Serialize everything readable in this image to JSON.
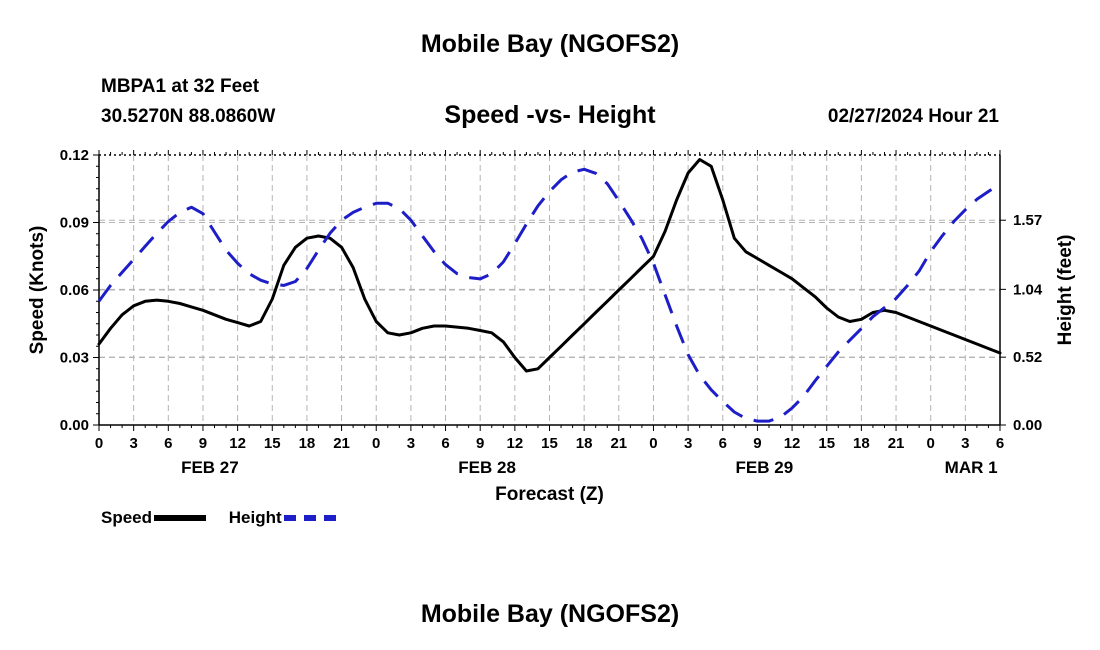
{
  "title": "Mobile Bay (NGOFS2)",
  "footer_title": "Mobile Bay (NGOFS2)",
  "station": "MBPA1 at 32 Feet",
  "coordinates": "30.5270N  88.0860W",
  "subtitle": "Speed -vs- Height",
  "timestamp": "02/27/2024 Hour 21",
  "colors": {
    "speed": "#000000",
    "height": "#1e1ec8",
    "grid": "#b4b4b4"
  },
  "chart_data": {
    "type": "line",
    "title": "Speed -vs- Height",
    "xlabel": "Forecast (Z)",
    "ylabel": "Speed (Knots)",
    "ylabel_right": "Height (feet)",
    "x_unit": "hours from FEB 27 00Z",
    "xlim": [
      0,
      78
    ],
    "ylim": [
      0,
      0.12
    ],
    "ylim_right": [
      0,
      2.07
    ],
    "x_tick_values": [
      0,
      3,
      6,
      9,
      12,
      15,
      18,
      21,
      24,
      27,
      30,
      33,
      36,
      39,
      42,
      45,
      48,
      51,
      54,
      57,
      60,
      63,
      66,
      69,
      72,
      75,
      78
    ],
    "x_tick_labels": [
      "0",
      "3",
      "6",
      "9",
      "12",
      "15",
      "18",
      "21",
      "0",
      "3",
      "6",
      "9",
      "12",
      "15",
      "18",
      "21",
      "0",
      "3",
      "6",
      "9",
      "12",
      "15",
      "18",
      "21",
      "0",
      "3",
      "6"
    ],
    "y_tick_labels": [
      "0.00",
      "0.03",
      "0.06",
      "0.09",
      "0.12"
    ],
    "y_ticks": [
      0,
      0.03,
      0.06,
      0.09,
      0.12
    ],
    "y_right_tick_labels": [
      "0.00",
      "0.52",
      "1.04",
      "1.57"
    ],
    "y_right_ticks": [
      0,
      0.52,
      1.04,
      1.57
    ],
    "date_labels": [
      {
        "text": "FEB 27",
        "x": 9.6
      },
      {
        "text": "FEB 28",
        "x": 33.6
      },
      {
        "text": "FEB 29",
        "x": 57.6
      },
      {
        "text": "MAR 1",
        "x": 75.5
      }
    ],
    "grid": true,
    "legend": "bottom-left",
    "series": [
      {
        "name": "Speed",
        "axis": "left",
        "style": "solid",
        "x": [
          0,
          1,
          2,
          3,
          4,
          5,
          6,
          7,
          8,
          9,
          10,
          11,
          12,
          13,
          14,
          15,
          16,
          17,
          18,
          19,
          20,
          21,
          22,
          23,
          24,
          25,
          26,
          27,
          28,
          29,
          30,
          31,
          32,
          33,
          34,
          35,
          36,
          37,
          38,
          39,
          40,
          41,
          42,
          43,
          44,
          45,
          46,
          47,
          48,
          49,
          50,
          51,
          52,
          53,
          54,
          55,
          56,
          57,
          58,
          59,
          60,
          61,
          62,
          63,
          64,
          65,
          66,
          67,
          68,
          69,
          70,
          71,
          72,
          73,
          74,
          75,
          76,
          77,
          78
        ],
        "values": [
          0.036,
          0.043,
          0.049,
          0.053,
          0.055,
          0.0555,
          0.055,
          0.054,
          0.0525,
          0.051,
          0.049,
          0.047,
          0.0455,
          0.044,
          0.046,
          0.056,
          0.071,
          0.079,
          0.083,
          0.084,
          0.083,
          0.079,
          0.07,
          0.056,
          0.046,
          0.041,
          0.04,
          0.041,
          0.043,
          0.044,
          0.044,
          0.0435,
          0.043,
          0.042,
          0.041,
          0.037,
          0.03,
          0.024,
          0.025,
          0.03,
          0.035,
          0.04,
          0.045,
          0.05,
          0.055,
          0.06,
          0.065,
          0.07,
          0.075,
          0.086,
          0.1,
          0.112,
          0.118,
          0.115,
          0.1,
          0.083,
          0.077,
          0.074,
          0.071,
          0.068,
          0.065,
          0.061,
          0.057,
          0.052,
          0.048,
          0.046,
          0.047,
          0.05,
          0.051,
          0.05,
          0.048,
          0.046,
          0.044,
          0.042,
          0.04,
          0.038,
          0.036,
          0.034,
          0.032
        ]
      },
      {
        "name": "Height",
        "axis": "right",
        "style": "dashed",
        "x": [
          0,
          1,
          2,
          3,
          4,
          5,
          6,
          7,
          8,
          9,
          10,
          11,
          12,
          13,
          14,
          15,
          16,
          17,
          18,
          19,
          20,
          21,
          22,
          23,
          24,
          25,
          26,
          27,
          28,
          29,
          30,
          31,
          32,
          33,
          34,
          35,
          36,
          37,
          38,
          39,
          40,
          41,
          42,
          43,
          44,
          45,
          46,
          47,
          48,
          49,
          50,
          51,
          52,
          53,
          54,
          55,
          56,
          57,
          58,
          59,
          60,
          61,
          62,
          63,
          64,
          65,
          66,
          67,
          68,
          69,
          70,
          71,
          72,
          73,
          74,
          75,
          76,
          77,
          78
        ],
        "values": [
          0.95,
          1.07,
          1.17,
          1.27,
          1.37,
          1.47,
          1.56,
          1.63,
          1.67,
          1.62,
          1.48,
          1.34,
          1.24,
          1.16,
          1.11,
          1.08,
          1.07,
          1.1,
          1.2,
          1.34,
          1.47,
          1.57,
          1.63,
          1.67,
          1.7,
          1.7,
          1.66,
          1.57,
          1.45,
          1.33,
          1.23,
          1.16,
          1.13,
          1.12,
          1.16,
          1.25,
          1.39,
          1.54,
          1.68,
          1.79,
          1.88,
          1.94,
          1.96,
          1.93,
          1.85,
          1.72,
          1.58,
          1.43,
          1.24,
          1.0,
          0.76,
          0.54,
          0.38,
          0.27,
          0.18,
          0.1,
          0.05,
          0.03,
          0.03,
          0.06,
          0.13,
          0.22,
          0.34,
          0.45,
          0.56,
          0.65,
          0.74,
          0.83,
          0.9,
          0.97,
          1.07,
          1.18,
          1.33,
          1.45,
          1.56,
          1.65,
          1.73,
          1.79,
          1.85
        ]
      }
    ]
  }
}
